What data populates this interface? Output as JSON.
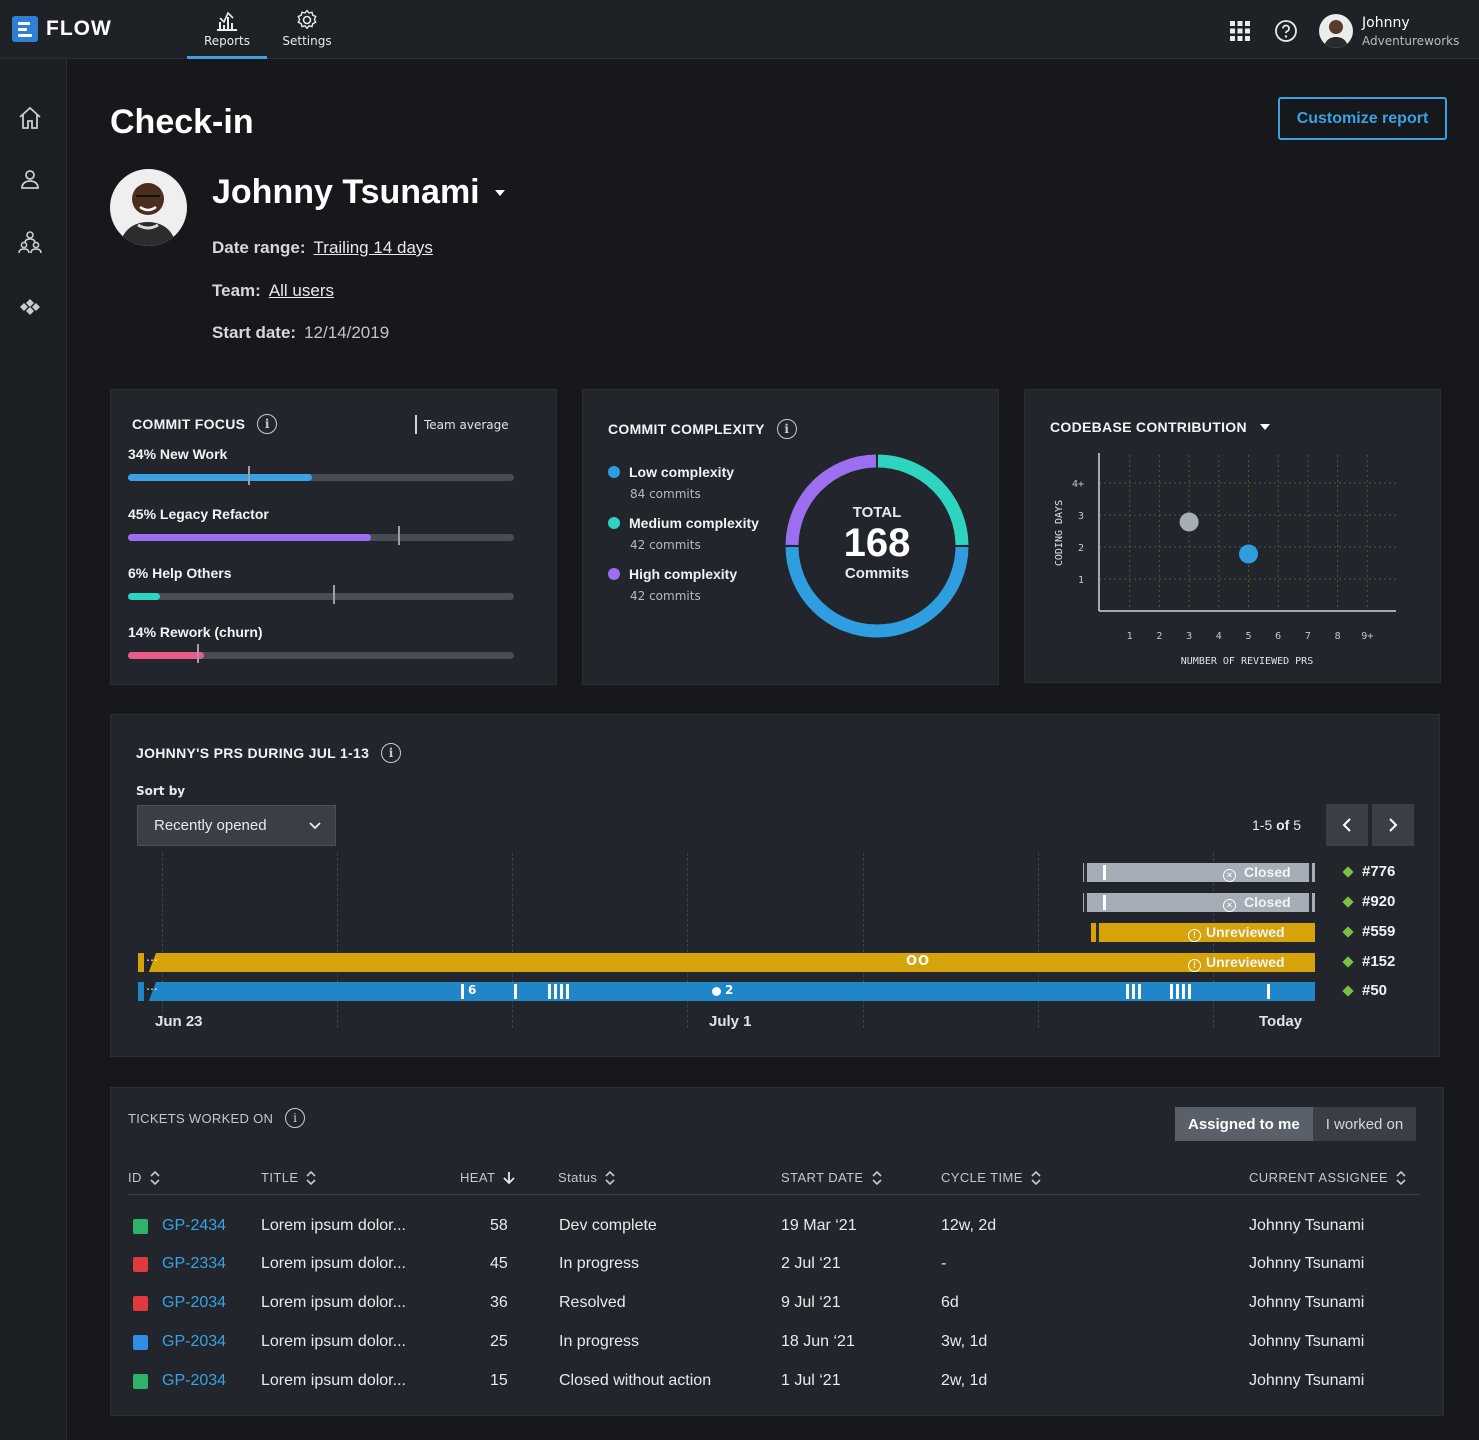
{
  "app": {
    "name": "FLOW"
  },
  "nav": {
    "tabs": [
      {
        "label": "Reports"
      },
      {
        "label": "Settings"
      }
    ]
  },
  "user": {
    "name": "Johnny",
    "org": "Adventureworks"
  },
  "page": {
    "title": "Check-in",
    "customize_label": "Customize report"
  },
  "profile": {
    "name": "Johnny Tsunami",
    "date_range_label": "Date range:",
    "date_range_value": "Trailing 14 days",
    "team_label": "Team:",
    "team_value": "All users",
    "start_label": "Start date:",
    "start_value": "12/14/2019"
  },
  "commit_focus": {
    "title": "COMMIT FOCUS",
    "legend": "Team average",
    "rows": [
      {
        "label": "34% New Work",
        "value": 34,
        "team_avg": 0.31,
        "color": "#3aa2e4"
      },
      {
        "label": "45% Legacy Refactor",
        "value": 45,
        "team_avg": 0.7,
        "color": "#9b6ff0"
      },
      {
        "label": "6% Help Others",
        "value": 6,
        "team_avg": 0.53,
        "color": "#2dd4bf"
      },
      {
        "label": "14% Rework (churn)",
        "value": 14,
        "team_avg": 0.18,
        "color": "#ec5a8a"
      }
    ]
  },
  "commit_complexity": {
    "title": "COMMIT COMPLEXITY",
    "total_label": "TOTAL",
    "total_value": "168",
    "total_unit": "Commits",
    "items": [
      {
        "label": "Low complexity",
        "sub": "84 commits",
        "value": 84,
        "color": "#2f9ee0"
      },
      {
        "label": "Medium complexity",
        "sub": "42 commits",
        "value": 42,
        "color": "#2dd4bf"
      },
      {
        "label": "High complexity",
        "sub": "42 commits",
        "value": 42,
        "color": "#9b6ff0"
      }
    ]
  },
  "codebase": {
    "title": "CODEBASE CONTRIBUTION",
    "chart_data": {
      "type": "scatter",
      "xlabel": "NUMBER OF REVIEWED PRS",
      "ylabel": "CODING DAYS",
      "x_ticks": [
        "1",
        "2",
        "3",
        "4",
        "5",
        "6",
        "7",
        "8",
        "9+"
      ],
      "y_ticks": [
        "1",
        "2",
        "3",
        "4+"
      ],
      "points": [
        {
          "x": 3,
          "y": 3,
          "color": "#a7adb5"
        },
        {
          "x": 5,
          "y": 2,
          "color": "#2f9ee0"
        }
      ]
    }
  },
  "prs": {
    "title": "JOHNNY'S PRS DURING JUL 1-13",
    "sort_label": "Sort by",
    "sort_value": "Recently opened",
    "pager_range": "1-5",
    "pager_of": "of",
    "pager_total": "5",
    "items": [
      {
        "id": "#776",
        "status": "Closed"
      },
      {
        "id": "#920",
        "status": "Closed"
      },
      {
        "id": "#559",
        "status": "Unreviewed"
      },
      {
        "id": "#152",
        "status": "Unreviewed"
      },
      {
        "id": "#50",
        "status": ""
      }
    ],
    "annotations": {
      "ticks_count": "6",
      "dot_count": "2",
      "circles": "OO"
    },
    "axis": [
      "Jun 23",
      "July 1",
      "Today"
    ]
  },
  "tickets": {
    "title": "TICKETS WORKED ON",
    "toggle": [
      "Assigned to me",
      "I worked on"
    ],
    "columns": [
      "ID",
      "TITLE",
      "HEAT",
      "Status",
      "START DATE",
      "CYCLE TIME",
      "CURRENT ASSIGNEE"
    ],
    "rows": [
      {
        "id": "GP-2434",
        "title": "Lorem ipsum dolor...",
        "heat": "58",
        "status": "Dev complete",
        "start": "19 Mar ‘21",
        "cycle": "12w, 2d",
        "assignee": "Johnny Tsunami",
        "icon_color": "#2fb36a",
        "icon": "bookmark-icon"
      },
      {
        "id": "GP-2334",
        "title": "Lorem ipsum dolor...",
        "heat": "45",
        "status": "In progress",
        "start": "2 Jul ‘21",
        "cycle": "-",
        "assignee": "Johnny Tsunami",
        "icon_color": "#e0393e",
        "icon": "bug-icon"
      },
      {
        "id": "GP-2034",
        "title": "Lorem ipsum dolor...",
        "heat": "36",
        "status": "Resolved",
        "start": "9 Jul ‘21",
        "cycle": "6d",
        "assignee": "Johnny Tsunami",
        "icon_color": "#e0393e",
        "icon": "bug-icon"
      },
      {
        "id": "GP-2034",
        "title": "Lorem ipsum dolor...",
        "heat": "25",
        "status": "In progress",
        "start": "18 Jun ‘21",
        "cycle": "3w, 1d",
        "assignee": "Johnny Tsunami",
        "icon_color": "#2f8fe8",
        "icon": "task-check-icon"
      },
      {
        "id": "GP-2034",
        "title": "Lorem ipsum dolor...",
        "heat": "15",
        "status": "Closed without action",
        "start": "1 Jul ‘21",
        "cycle": "2w, 1d",
        "assignee": "Johnny Tsunami",
        "icon_color": "#2fb36a",
        "icon": "improvement-icon"
      }
    ]
  }
}
